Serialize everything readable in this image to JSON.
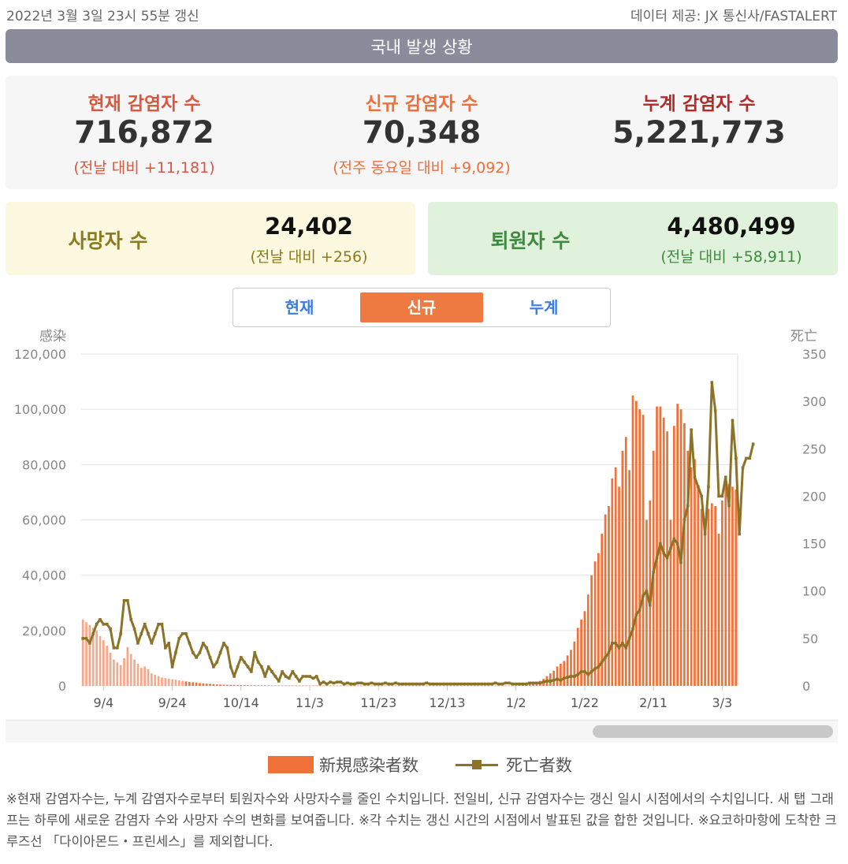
{
  "header": {
    "updated": "2022년 3월 3일 23시 55분 갱신",
    "source": "데이터 제공: JX 통신사/FASTALERT",
    "title": "국내 발생 상황"
  },
  "summary": {
    "current": {
      "label": "현재 감염자 수",
      "value": "716,872",
      "delta": "(전날 대비 +11,181)"
    },
    "new": {
      "label": "신규 감염자 수",
      "value": "70,348",
      "delta": "(전주 동요일 대비 +9,092)"
    },
    "total": {
      "label": "누계 감염자 수",
      "value": "5,221,773"
    }
  },
  "deaths": {
    "label": "사망자 수",
    "value": "24,402",
    "delta": "(전날 대비 +256)"
  },
  "recovered": {
    "label": "퇴원자 수",
    "value": "4,480,499",
    "delta": "(전날 대비 +58,911)"
  },
  "tabs": [
    {
      "label": "현재",
      "active": false
    },
    {
      "label": "신규",
      "active": true
    },
    {
      "label": "누계",
      "active": false
    }
  ],
  "chart_data": {
    "type": "bar+line",
    "left_axis_title": "感染",
    "right_axis_title": "死亡",
    "left_ylim": [
      0,
      120000
    ],
    "right_ylim": [
      0,
      350
    ],
    "left_ticks": [
      "0",
      "20,000",
      "40,000",
      "60,000",
      "80,000",
      "100,000",
      "120,000"
    ],
    "left_tick_values": [
      0,
      20000,
      40000,
      60000,
      80000,
      100000,
      120000
    ],
    "right_ticks": [
      "0",
      "50",
      "100",
      "150",
      "200",
      "250",
      "300",
      "350"
    ],
    "right_tick_values": [
      0,
      50,
      100,
      150,
      200,
      250,
      300,
      350
    ],
    "x_ticks": [
      "9/4",
      "9/24",
      "10/14",
      "11/3",
      "11/23",
      "12/13",
      "1/2",
      "1/22",
      "2/11",
      "3/3"
    ],
    "x_tick_index": [
      6,
      26,
      46,
      66,
      86,
      106,
      126,
      146,
      166,
      186
    ],
    "grid": true,
    "colors": {
      "cases": "#ef7138",
      "cases_faded": "#f5a98a",
      "deaths": "#8b7328"
    },
    "series": [
      {
        "name": "新規感染者数",
        "type": "bar",
        "values": [
          24000,
          23000,
          22000,
          21000,
          20000,
          18000,
          16500,
          14500,
          12000,
          9500,
          8500,
          7500,
          10000,
          14000,
          11500,
          9500,
          8000,
          6500,
          7000,
          6000,
          4500,
          4000,
          3500,
          3000,
          2800,
          2600,
          2400,
          2200,
          2000,
          1800,
          1600,
          1400,
          1300,
          1200,
          1000,
          900,
          800,
          700,
          600,
          500,
          450,
          400,
          380,
          360,
          340,
          320,
          300,
          280,
          260,
          240,
          220,
          200,
          180,
          170,
          160,
          150,
          140,
          130,
          120,
          110,
          100,
          100,
          100,
          100,
          100,
          100,
          100,
          100,
          100,
          100,
          100,
          100,
          100,
          100,
          100,
          100,
          100,
          100,
          100,
          100,
          100,
          100,
          100,
          100,
          100,
          100,
          100,
          100,
          100,
          100,
          100,
          100,
          100,
          100,
          100,
          100,
          100,
          100,
          100,
          100,
          100,
          100,
          100,
          100,
          100,
          100,
          100,
          100,
          100,
          100,
          100,
          100,
          100,
          100,
          100,
          100,
          100,
          100,
          100,
          100,
          100,
          100,
          100,
          100,
          100,
          100,
          100,
          200,
          300,
          400,
          600,
          900,
          1300,
          1800,
          2500,
          3500,
          4500,
          5500,
          7000,
          8000,
          9000,
          11000,
          13000,
          16000,
          21000,
          24000,
          27000,
          33000,
          40000,
          45000,
          48000,
          55000,
          62000,
          65000,
          75000,
          79000,
          72000,
          85000,
          90000,
          78000,
          105000,
          103000,
          100000,
          98000,
          60000,
          67000,
          85000,
          101000,
          101000,
          97000,
          92000,
          60000,
          94000,
          102000,
          100000,
          95000,
          85000,
          79000,
          82000,
          72000,
          64000,
          58000,
          64000,
          66000,
          65000,
          55000,
          67000,
          76000,
          73000,
          72000,
          71000
        ]
      },
      {
        "name": "死亡者数",
        "type": "line",
        "values": [
          50,
          50,
          45,
          55,
          65,
          70,
          65,
          65,
          60,
          40,
          40,
          55,
          90,
          90,
          70,
          60,
          45,
          55,
          65,
          55,
          45,
          55,
          65,
          65,
          40,
          45,
          20,
          35,
          50,
          55,
          55,
          45,
          35,
          30,
          35,
          45,
          40,
          30,
          20,
          25,
          35,
          45,
          40,
          20,
          10,
          20,
          30,
          25,
          20,
          15,
          35,
          25,
          20,
          10,
          20,
          15,
          10,
          5,
          15,
          10,
          8,
          15,
          10,
          5,
          10,
          10,
          10,
          8,
          10,
          2,
          4,
          2,
          4,
          3,
          4,
          4,
          2,
          3,
          2,
          2,
          3,
          3,
          2,
          2,
          3,
          2,
          2,
          2,
          3,
          2,
          2,
          3,
          2,
          2,
          2,
          2,
          2,
          2,
          2,
          2,
          3,
          2,
          2,
          2,
          2,
          2,
          2,
          2,
          2,
          2,
          2,
          2,
          2,
          2,
          2,
          2,
          2,
          2,
          2,
          2,
          3,
          2,
          2,
          3,
          3,
          2,
          2,
          2,
          2,
          2,
          3,
          3,
          3,
          3,
          4,
          5,
          5,
          6,
          7,
          6,
          8,
          9,
          10,
          10,
          12,
          15,
          15,
          12,
          15,
          18,
          20,
          25,
          30,
          35,
          45,
          45,
          40,
          45,
          40,
          50,
          60,
          75,
          80,
          95,
          100,
          85,
          120,
          135,
          150,
          140,
          135,
          145,
          155,
          150,
          130,
          175,
          190,
          270,
          220,
          210,
          200,
          160,
          210,
          320,
          290,
          200,
          200,
          220,
          190,
          280,
          240,
          160,
          230,
          240,
          240,
          255
        ]
      }
    ]
  },
  "legend": {
    "cases": "新規感染者数",
    "deaths": "死亡者数"
  },
  "footnote": "※현재 감염자수는, 누계 감염자수로부터 퇴원자수와 사망자수를 줄인 수치입니다. 전일비, 신규 감염자수는 갱신 일시 시점에서의 수치입니다. 새 탭 그래프는 하루에 새로운 감염자 수와 사망자 수의 변화를 보여줍니다. ※각 수치는 갱신 시간의 시점에서 발표된 값을 합한 것입니다. ※요코하마항에 도착한 크루즈선 「다이아몬드・프린세스」를 제외합니다."
}
